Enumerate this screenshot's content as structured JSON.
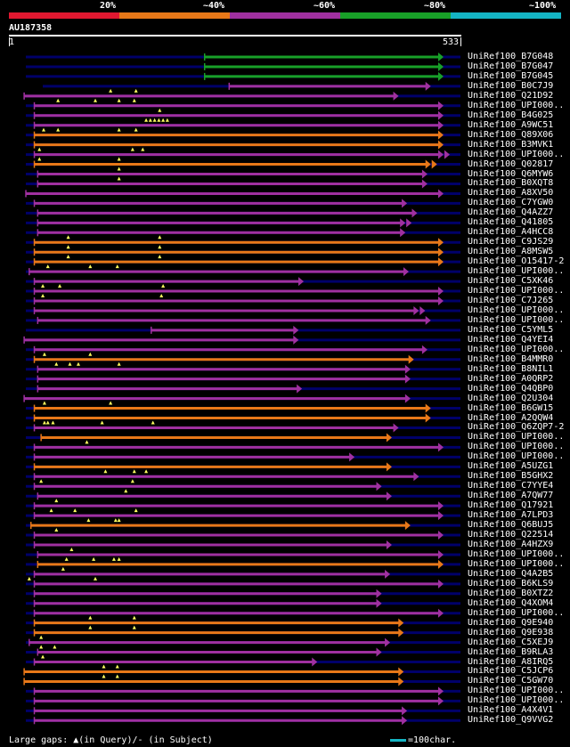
{
  "legend": {
    "labels": [
      "20%",
      "~40%",
      "~60%",
      "~80%",
      "~100%"
    ],
    "colors": [
      "#e01830",
      "#e87818",
      "#a030a0",
      "#18a028",
      "#14b4c4"
    ]
  },
  "query": {
    "id": "AU187358",
    "start": "1",
    "end": "533"
  },
  "track_colors": {
    "green": "#18a028",
    "purple": "#a030a0",
    "orange": "#e87818",
    "background": "#00006a",
    "marker": "#ffff60"
  },
  "hits": [
    {
      "label": "UniRef100_B7G048",
      "color": "green",
      "start": 231,
      "end": 513,
      "bg_start": 20,
      "markers": []
    },
    {
      "label": "UniRef100_B7G047",
      "color": "green",
      "start": 231,
      "end": 513,
      "bg_start": 20,
      "markers": []
    },
    {
      "label": "UniRef100_B7G045",
      "color": "green",
      "start": 231,
      "end": 513,
      "bg_start": 20,
      "markers": []
    },
    {
      "label": "UniRef100_B0C7J9",
      "color": "purple",
      "start": 260,
      "end": 498,
      "bg_start": 40,
      "markers": []
    },
    {
      "label": "UniRef100_Q21D92",
      "color": "purple",
      "start": 18,
      "end": 460,
      "bg_start": 18,
      "markers": [
        120,
        150
      ]
    },
    {
      "label": "UniRef100_UPI000..",
      "color": "purple",
      "start": 30,
      "end": 513,
      "bg_start": 20,
      "markers": [
        58,
        102,
        130,
        148
      ]
    },
    {
      "label": "UniRef100_B4G025",
      "color": "purple",
      "start": 30,
      "end": 513,
      "bg_start": 20,
      "markers": [
        178
      ]
    },
    {
      "label": "UniRef100_A9WC51",
      "color": "purple",
      "start": 30,
      "end": 513,
      "bg_start": 20,
      "markers": [
        162,
        167,
        172,
        177,
        182,
        187
      ]
    },
    {
      "label": "UniRef100_Q89X06",
      "color": "orange",
      "start": 30,
      "end": 513,
      "bg_start": 20,
      "markers": [
        41,
        58,
        130,
        150
      ]
    },
    {
      "label": "UniRef100_B3MVK1",
      "color": "orange",
      "start": 30,
      "end": 513,
      "bg_start": 20,
      "markers": []
    },
    {
      "label": "UniRef100_UPI000..",
      "color": "purple",
      "start": 30,
      "end": 513,
      "bg_start": 20,
      "markers": [
        36,
        146,
        158
      ],
      "double": true
    },
    {
      "label": "UniRef100_Q02817",
      "color": "orange",
      "start": 30,
      "end": 498,
      "bg_start": 20,
      "markers": [
        36,
        130
      ],
      "double": true
    },
    {
      "label": "UniRef100_Q6MYW6",
      "color": "purple",
      "start": 34,
      "end": 494,
      "bg_start": 20,
      "markers": [
        130
      ]
    },
    {
      "label": "UniRef100_B0XQT8",
      "color": "purple",
      "start": 34,
      "end": 494,
      "bg_start": 20,
      "markers": [
        130
      ]
    },
    {
      "label": "UniRef100_A8XV50",
      "color": "purple",
      "start": 20,
      "end": 513,
      "bg_start": 20,
      "markers": []
    },
    {
      "label": "UniRef100_C7YGW0",
      "color": "purple",
      "start": 30,
      "end": 470,
      "bg_start": 20,
      "markers": []
    },
    {
      "label": "UniRef100_Q4AZZ7",
      "color": "purple",
      "start": 34,
      "end": 482,
      "bg_start": 20,
      "markers": []
    },
    {
      "label": "UniRef100_Q41805",
      "color": "purple",
      "start": 34,
      "end": 468,
      "bg_start": 20,
      "markers": [],
      "double": true
    },
    {
      "label": "UniRef100_A4HCC8",
      "color": "purple",
      "start": 34,
      "end": 468,
      "bg_start": 20,
      "markers": []
    },
    {
      "label": "UniRef100_C9JS29",
      "color": "orange",
      "start": 30,
      "end": 513,
      "bg_start": 20,
      "markers": [
        70,
        178
      ]
    },
    {
      "label": "UniRef100_A8MSW5",
      "color": "orange",
      "start": 30,
      "end": 513,
      "bg_start": 20,
      "markers": [
        70,
        178
      ]
    },
    {
      "label": "UniRef100_O15417-2",
      "color": "orange",
      "start": 30,
      "end": 513,
      "bg_start": 20,
      "markers": [
        70,
        178
      ]
    },
    {
      "label": "UniRef100_UPI000..",
      "color": "purple",
      "start": 24,
      "end": 472,
      "bg_start": 20,
      "markers": [
        46,
        96,
        128
      ]
    },
    {
      "label": "UniRef100_C5XK46",
      "color": "purple",
      "start": 30,
      "end": 348,
      "bg_start": 20,
      "markers": []
    },
    {
      "label": "UniRef100_UPI000..",
      "color": "purple",
      "start": 30,
      "end": 513,
      "bg_start": 20,
      "markers": [
        40,
        60,
        182
      ]
    },
    {
      "label": "UniRef100_C7J265",
      "color": "purple",
      "start": 30,
      "end": 513,
      "bg_start": 20,
      "markers": [
        40,
        180
      ]
    },
    {
      "label": "UniRef100_UPI000..",
      "color": "purple",
      "start": 30,
      "end": 484,
      "bg_start": 20,
      "markers": [],
      "double": true
    },
    {
      "label": "UniRef100_UPI000..",
      "color": "purple",
      "start": 34,
      "end": 498,
      "bg_start": 20,
      "markers": []
    },
    {
      "label": "UniRef100_C5YML5",
      "color": "purple",
      "start": 168,
      "end": 342,
      "bg_start": 20,
      "markers": []
    },
    {
      "label": "UniRef100_Q4YEI4",
      "color": "purple",
      "start": 18,
      "end": 342,
      "bg_start": 18,
      "markers": []
    },
    {
      "label": "UniRef100_UPI000..",
      "color": "purple",
      "start": 30,
      "end": 494,
      "bg_start": 20,
      "markers": []
    },
    {
      "label": "UniRef100_B4MMR0",
      "color": "orange",
      "start": 30,
      "end": 478,
      "bg_start": 20,
      "markers": [
        42,
        96
      ]
    },
    {
      "label": "UniRef100_B8NIL1",
      "color": "purple",
      "start": 34,
      "end": 474,
      "bg_start": 20,
      "markers": [
        56,
        72,
        82,
        130
      ]
    },
    {
      "label": "UniRef100_A0QRP2",
      "color": "purple",
      "start": 34,
      "end": 474,
      "bg_start": 20,
      "markers": []
    },
    {
      "label": "UniRef100_Q4QBP0",
      "color": "purple",
      "start": 34,
      "end": 346,
      "bg_start": 20,
      "markers": []
    },
    {
      "label": "UniRef100_Q2U304",
      "color": "purple",
      "start": 18,
      "end": 474,
      "bg_start": 18,
      "markers": []
    },
    {
      "label": "UniRef100_B6GW15",
      "color": "orange",
      "start": 30,
      "end": 498,
      "bg_start": 20,
      "markers": [
        42,
        120
      ]
    },
    {
      "label": "UniRef100_A2QQW4",
      "color": "orange",
      "start": 30,
      "end": 498,
      "bg_start": 20,
      "markers": []
    },
    {
      "label": "UniRef100_Q6ZQP7-2",
      "color": "purple",
      "start": 30,
      "end": 460,
      "bg_start": 20,
      "markers": [
        42,
        46,
        52,
        110,
        170
      ]
    },
    {
      "label": "UniRef100_UPI000..",
      "color": "orange",
      "start": 38,
      "end": 452,
      "bg_start": 20,
      "markers": []
    },
    {
      "label": "UniRef100_UPI000..",
      "color": "purple",
      "start": 30,
      "end": 513,
      "bg_start": 20,
      "markers": [
        92
      ]
    },
    {
      "label": "UniRef100_UPI000..",
      "color": "purple",
      "start": 30,
      "end": 408,
      "bg_start": 20,
      "markers": []
    },
    {
      "label": "UniRef100_A5UZG1",
      "color": "orange",
      "start": 30,
      "end": 452,
      "bg_start": 20,
      "markers": []
    },
    {
      "label": "UniRef100_B5GHX2",
      "color": "purple",
      "start": 30,
      "end": 484,
      "bg_start": 20,
      "markers": [
        114,
        148,
        162
      ]
    },
    {
      "label": "UniRef100_C7YYE4",
      "color": "purple",
      "start": 30,
      "end": 440,
      "bg_start": 20,
      "markers": [
        38,
        146
      ]
    },
    {
      "label": "UniRef100_A7QW77",
      "color": "purple",
      "start": 34,
      "end": 452,
      "bg_start": 20,
      "markers": [
        138
      ]
    },
    {
      "label": "UniRef100_Q17921",
      "color": "purple",
      "start": 30,
      "end": 513,
      "bg_start": 20,
      "markers": [
        56
      ]
    },
    {
      "label": "UniRef100_A7LPD3",
      "color": "purple",
      "start": 30,
      "end": 513,
      "bg_start": 20,
      "markers": [
        50,
        78,
        150
      ]
    },
    {
      "label": "UniRef100_Q6BUJ5",
      "color": "orange",
      "start": 26,
      "end": 474,
      "bg_start": 20,
      "markers": [
        94,
        126,
        130
      ]
    },
    {
      "label": "UniRef100_Q22514",
      "color": "purple",
      "start": 30,
      "end": 513,
      "bg_start": 20,
      "markers": [
        56
      ]
    },
    {
      "label": "UniRef100_A4HZX9",
      "color": "purple",
      "start": 30,
      "end": 452,
      "bg_start": 20,
      "markers": []
    },
    {
      "label": "UniRef100_UPI000..",
      "color": "purple",
      "start": 34,
      "end": 513,
      "bg_start": 20,
      "markers": [
        74
      ]
    },
    {
      "label": "UniRef100_UPI000..",
      "color": "orange",
      "start": 34,
      "end": 513,
      "bg_start": 20,
      "markers": [
        68,
        100,
        124,
        130
      ]
    },
    {
      "label": "UniRef100_Q4A2B5",
      "color": "purple",
      "start": 30,
      "end": 450,
      "bg_start": 20,
      "markers": [
        64
      ]
    },
    {
      "label": "UniRef100_B6KLS9",
      "color": "purple",
      "start": 30,
      "end": 513,
      "bg_start": 20,
      "markers": [
        24,
        102
      ]
    },
    {
      "label": "UniRef100_B0XTZ2",
      "color": "purple",
      "start": 30,
      "end": 440,
      "bg_start": 20,
      "markers": []
    },
    {
      "label": "UniRef100_Q4XOM4",
      "color": "purple",
      "start": 30,
      "end": 440,
      "bg_start": 20,
      "markers": []
    },
    {
      "label": "UniRef100_UPI000..",
      "color": "purple",
      "start": 30,
      "end": 513,
      "bg_start": 20,
      "markers": []
    },
    {
      "label": "UniRef100_Q9E940",
      "color": "orange",
      "start": 30,
      "end": 466,
      "bg_start": 20,
      "markers": [
        96,
        148
      ]
    },
    {
      "label": "UniRef100_Q9E938",
      "color": "orange",
      "start": 30,
      "end": 466,
      "bg_start": 20,
      "markers": [
        96,
        148
      ]
    },
    {
      "label": "UniRef100_C5XEJ9",
      "color": "purple",
      "start": 24,
      "end": 450,
      "bg_start": 20,
      "markers": [
        38
      ]
    },
    {
      "label": "UniRef100_B9RLA3",
      "color": "purple",
      "start": 34,
      "end": 440,
      "bg_start": 20,
      "markers": [
        38,
        54
      ]
    },
    {
      "label": "UniRef100_A8IRQ5",
      "color": "purple",
      "start": 30,
      "end": 364,
      "bg_start": 20,
      "markers": [
        40
      ]
    },
    {
      "label": "UniRef100_C5JCP6",
      "color": "orange",
      "start": 18,
      "end": 466,
      "bg_start": 18,
      "markers": [
        112,
        128
      ]
    },
    {
      "label": "UniRef100_C5GW70",
      "color": "orange",
      "start": 18,
      "end": 466,
      "bg_start": 18,
      "markers": [
        112,
        128
      ]
    },
    {
      "label": "UniRef100_UPI000..",
      "color": "purple",
      "start": 30,
      "end": 513,
      "bg_start": 20,
      "markers": []
    },
    {
      "label": "UniRef100_UPI000..",
      "color": "purple",
      "start": 30,
      "end": 513,
      "bg_start": 20,
      "markers": []
    },
    {
      "label": "UniRef100_A4X4V1",
      "color": "purple",
      "start": 30,
      "end": 470,
      "bg_start": 20,
      "markers": []
    },
    {
      "label": "UniRef100_Q9VVG2",
      "color": "purple",
      "start": 30,
      "end": 470,
      "bg_start": 20,
      "markers": []
    }
  ],
  "footer": {
    "note": "Large gaps: ▲(in Query)/- (in Subject)",
    "scale": "=100char."
  }
}
